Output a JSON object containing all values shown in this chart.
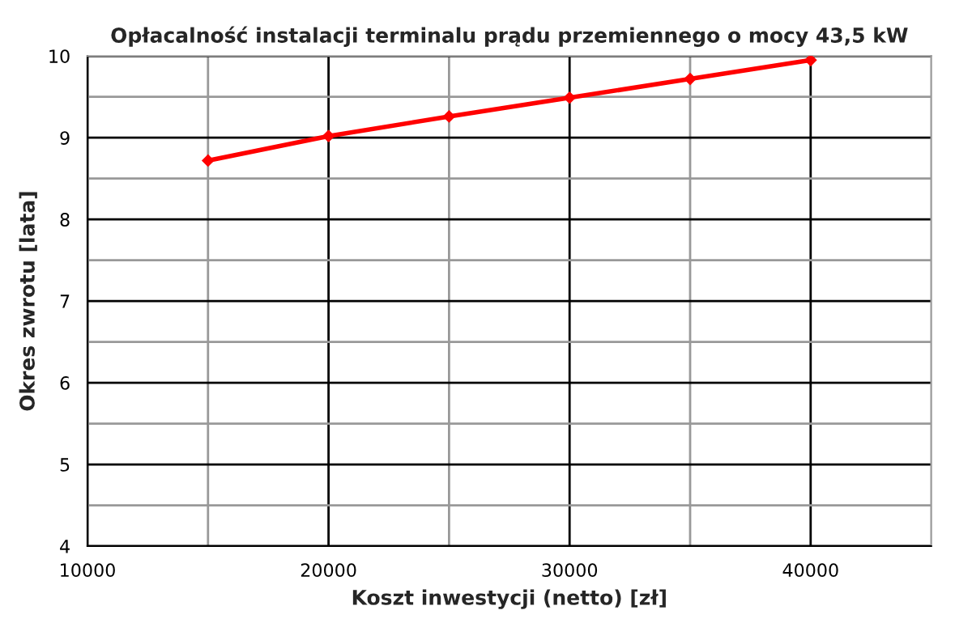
{
  "chart_data": {
    "type": "line",
    "title": "Opłacalność instalacji terminalu prądu przemiennego o mocy 43,5 kW",
    "xlabel": "Koszt inwestycji (netto) [zł]",
    "ylabel": "Okres zwrotu [lata]",
    "x": [
      15000,
      20000,
      25000,
      30000,
      35000,
      40000
    ],
    "series": [
      {
        "color": "#ff0000",
        "values": [
          8.72,
          9.02,
          9.26,
          9.49,
          9.72,
          9.95
        ]
      }
    ],
    "xlim": [
      10000,
      45000
    ],
    "xticks": [
      10000,
      20000,
      30000,
      40000
    ],
    "ylim": [
      4,
      10
    ],
    "yticks": [
      4,
      5,
      6,
      7,
      8,
      9,
      10
    ],
    "grid": true,
    "marker": "diamond",
    "line_style": "solid"
  }
}
